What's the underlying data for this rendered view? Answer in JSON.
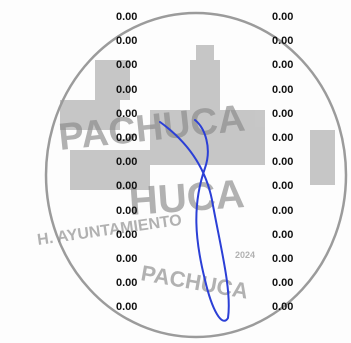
{
  "document": {
    "left_column": [
      "0.00",
      "0.00",
      "0.00",
      "0.00",
      "0.00",
      "0.00",
      "0.00",
      "0.00",
      "0.00",
      "0.00",
      "0.00",
      "0.00",
      "0.00"
    ],
    "right_column": [
      "0.00",
      "0.00",
      "0.00",
      "0.00",
      "0.00",
      "0.00",
      "0.00",
      "0.00",
      "0.00",
      "0.00",
      "0.00",
      "0.00",
      "0.00"
    ]
  },
  "stamp": {
    "text_top": "PACHUCA",
    "text_middle": "PACHUCA",
    "text_bottom": "H. AYUNTAMIENTO PACHUCA",
    "year": "2024",
    "ink_color": "#7a7a7a"
  },
  "signature": {
    "ink_color": "#2b3fd6"
  }
}
